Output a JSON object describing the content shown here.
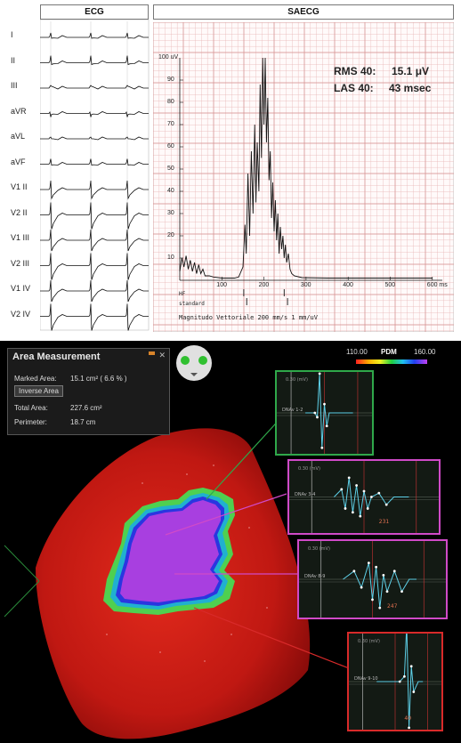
{
  "ecg": {
    "title": "ECG",
    "leads": [
      "I",
      "II",
      "III",
      "aVR",
      "aVL",
      "aVF",
      "V1 II",
      "V2 II",
      "V1 III",
      "V2 III",
      "V1 IV",
      "V2 IV"
    ]
  },
  "saecg": {
    "title": "SAECG",
    "rms_label": "RMS 40:",
    "rms_value": "15.1 μV",
    "las_label": "LAS 40:",
    "las_value": "43 msec",
    "y_unit_label": "100 uV",
    "y_ticks": [
      "90",
      "80",
      "70",
      "60",
      "50",
      "40",
      "30",
      "20",
      "10"
    ],
    "x_ticks": [
      "100",
      "200",
      "300",
      "400",
      "500",
      "600 ms"
    ],
    "marker_hf": "HF",
    "marker_standard": "standard",
    "footer": "Magnitudo Vettoriale   200 mm/s  1 mm/uV",
    "colors": {
      "grid": "#e8b8b8",
      "trace": "#111111"
    }
  },
  "area_measurement": {
    "title": "Area Measurement",
    "marked_area_label": "Marked Area:",
    "marked_area_value": "15.1 cm² ( 6.6 % )",
    "inverse_button": "Inverse Area",
    "total_area_label": "Total Area:",
    "total_area_value": "227.6 cm²",
    "perimeter_label": "Perimeter:",
    "perimeter_value": "18.7 cm"
  },
  "pdm_scale": {
    "min": "110.00",
    "label": "PDM",
    "max": "160.00"
  },
  "insets": [
    {
      "border": "#2fa84a",
      "lead_label": "DNAv 1-2",
      "amp_label": "0.30 (mV)",
      "interval": ""
    },
    {
      "border": "#d04ac8",
      "lead_label": "DNAv 3-4",
      "amp_label": "0.30 (mV)",
      "interval": "231"
    },
    {
      "border": "#d04ac8",
      "lead_label": "DNAv 8-9",
      "amp_label": "0.30 (mV)",
      "interval": "247"
    },
    {
      "border": "#d82a2a",
      "lead_label": "DNAv 9-10",
      "amp_label": "0.30 (mV)",
      "interval": "40"
    }
  ]
}
